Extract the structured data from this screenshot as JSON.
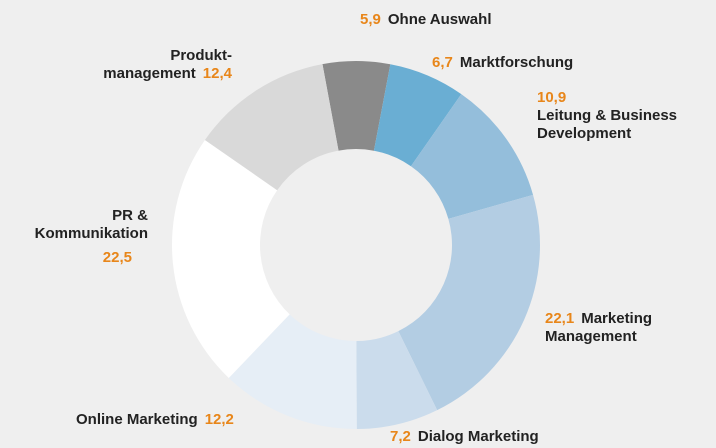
{
  "chart_data": {
    "type": "donut",
    "categories": [
      "Ohne Auswahl",
      "Marktforschung",
      "Leitung & Business\nDevelopment",
      "Marketing\nManagement",
      "Dialog Marketing",
      "Online Marketing",
      "PR &\nKommunikation",
      "Produkt-\nmanagement"
    ],
    "values": [
      5.9,
      6.7,
      10.9,
      22.1,
      7.2,
      12.2,
      22.5,
      12.4
    ],
    "value_labels": [
      "5,9",
      "6,7",
      "10,9",
      "22,1",
      "7,2",
      "12,2",
      "22,5",
      "12,4"
    ],
    "colors": [
      "#8a8a8a",
      "#6aaed3",
      "#94bedb",
      "#b3cde3",
      "#cbdcec",
      "#e6eef6",
      "#ffffff",
      "#d9d9d9"
    ]
  }
}
